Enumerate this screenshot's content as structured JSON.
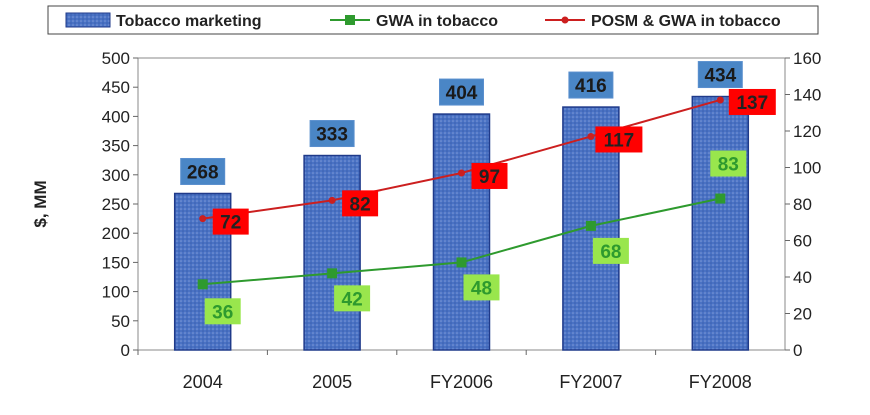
{
  "chart_data": {
    "type": "bar",
    "categories": [
      "2004",
      "2005",
      "FY2006",
      "FY2007",
      "FY2008"
    ],
    "ylabel": "$, MM",
    "ylim": [
      0,
      500
    ],
    "y2lim": [
      0,
      160
    ],
    "grid": false,
    "legend_position": "top",
    "series": [
      {
        "name": "Tobacco marketing",
        "kind": "bar",
        "axis": "left",
        "values": [
          268,
          333,
          404,
          416,
          434
        ],
        "color": "#4a72c4"
      },
      {
        "name": "GWA in tobacco",
        "kind": "line",
        "axis": "right",
        "values": [
          36,
          42,
          48,
          68,
          83
        ],
        "color": "#2e9a2e",
        "label_bg": "#99e64d",
        "label_color": "#2e9a2e"
      },
      {
        "name": "POSM & GWA in tobacco",
        "kind": "line",
        "axis": "right",
        "values": [
          72,
          82,
          97,
          117,
          137
        ],
        "color": "#cc1f1f",
        "label_bg": "#ff0000",
        "label_color": "#222222"
      }
    ],
    "left_ticks": [
      "0",
      "50",
      "100",
      "150",
      "200",
      "250",
      "300",
      "350",
      "400",
      "450",
      "500"
    ],
    "right_ticks": [
      "0",
      "20",
      "40",
      "60",
      "80",
      "100",
      "120",
      "140",
      "160"
    ]
  }
}
